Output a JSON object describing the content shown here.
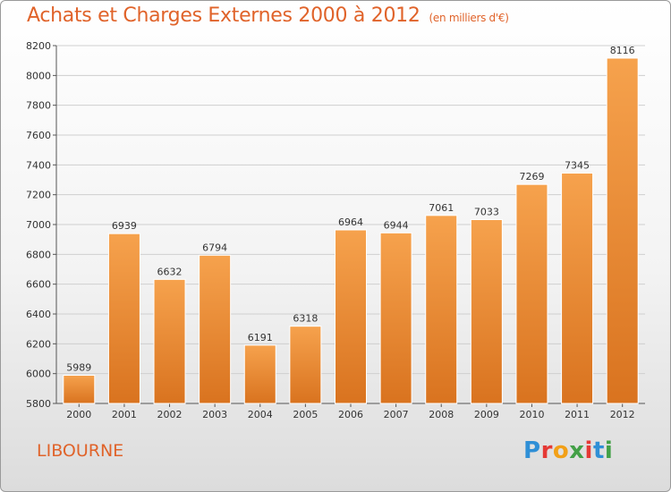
{
  "title": "Achats et Charges Externes 2000 à 2012",
  "unit": "(en milliers d'€)",
  "place": "LIBOURNE",
  "brand": {
    "letters": [
      "P",
      "r",
      "o",
      "x",
      "i",
      "t",
      "i"
    ],
    "colors": [
      "#2f8fd6",
      "#e53935",
      "#f2a017",
      "#43a047",
      "#e53935",
      "#2f8fd6",
      "#43a047"
    ]
  },
  "colors": {
    "title": "#e0632a",
    "bar_light": "#f6a24d",
    "bar_dark": "#d9731f",
    "grid": "#cfcfcf"
  },
  "chart_data": {
    "type": "bar",
    "title": "Achats et Charges Externes 2000 à 2012",
    "categories": [
      "2000",
      "2001",
      "2002",
      "2003",
      "2004",
      "2005",
      "2006",
      "2007",
      "2008",
      "2009",
      "2010",
      "2011",
      "2012"
    ],
    "values": [
      5989,
      6939,
      6632,
      6794,
      6191,
      6318,
      6964,
      6944,
      7061,
      7033,
      7269,
      7345,
      8116
    ],
    "ylim": [
      5800,
      8200
    ],
    "yticks": [
      5800,
      6000,
      6200,
      6400,
      6600,
      6800,
      7000,
      7200,
      7400,
      7600,
      7800,
      8000,
      8200
    ],
    "grid": true,
    "xlabel": "",
    "ylabel": ""
  }
}
